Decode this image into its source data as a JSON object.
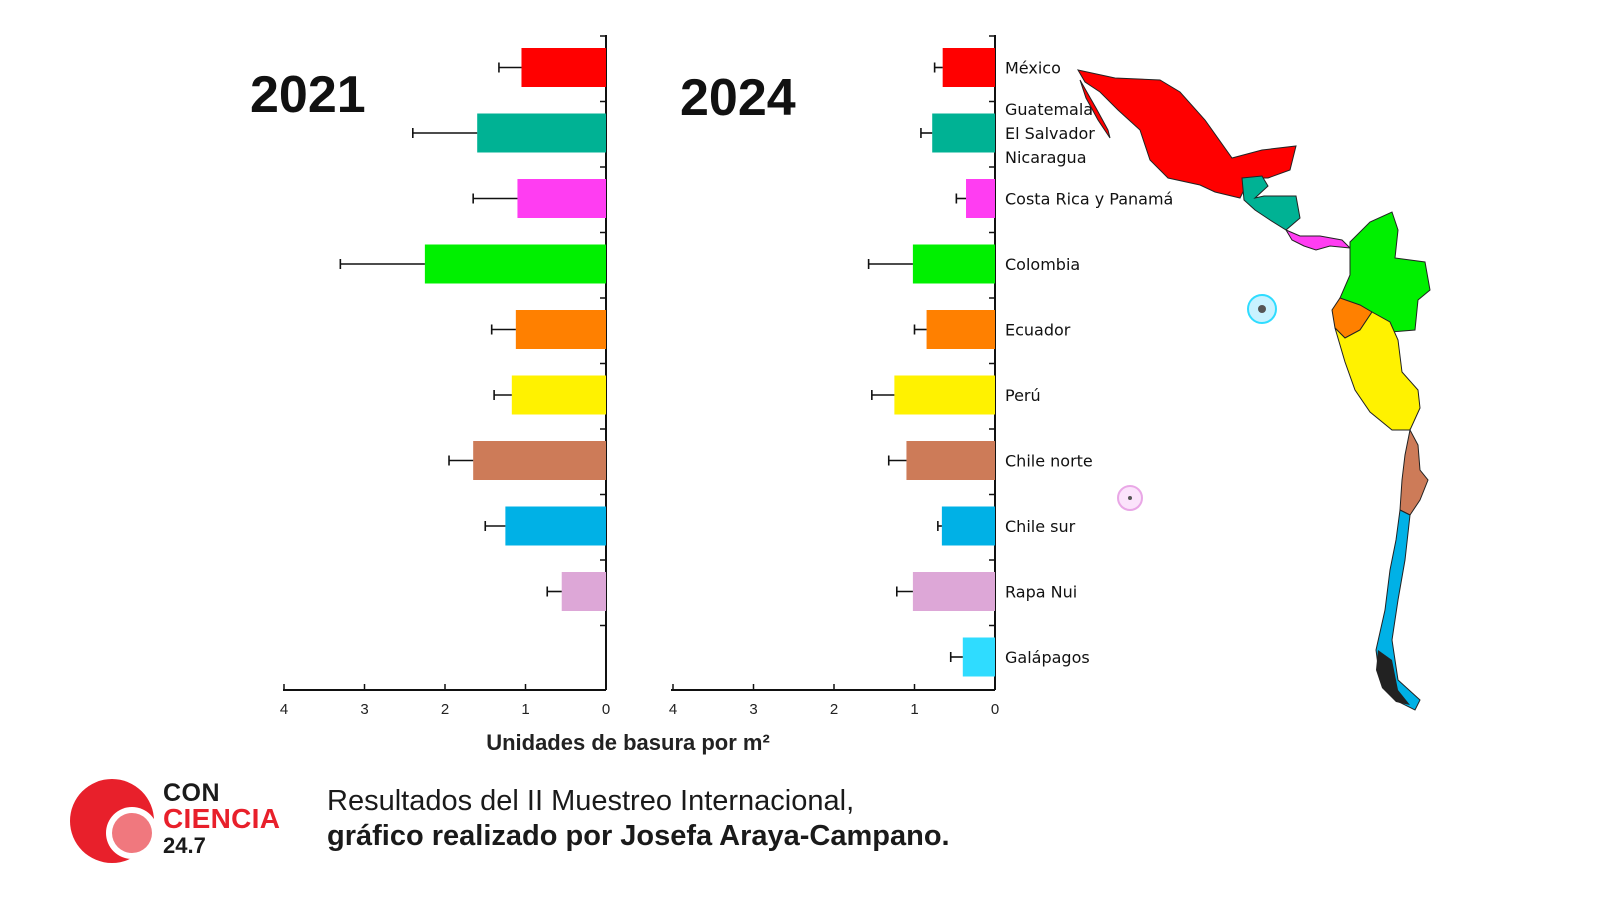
{
  "chart_data": [
    {
      "type": "bar",
      "orientation": "horizontal",
      "title": "2021",
      "xlabel": "Unidades de basura por m²",
      "xlim": [
        4,
        0
      ],
      "x_ticks": [
        "4",
        "3",
        "2",
        "1",
        "0"
      ],
      "categories": [
        "México",
        "Guatemala El Salvador Nicaragua",
        "Costa Rica y Panamá",
        "Colombia",
        "Ecuador",
        "Perú",
        "Chile norte",
        "Chile sur",
        "Rapa Nui",
        "Galápagos"
      ],
      "values": [
        1.05,
        1.6,
        1.1,
        2.25,
        1.12,
        1.17,
        1.65,
        1.25,
        0.55,
        null
      ],
      "error": [
        0.28,
        0.8,
        0.55,
        1.05,
        0.3,
        0.22,
        0.3,
        0.25,
        0.18,
        null
      ],
      "colors": [
        "#ff0000",
        "#00b294",
        "#ff3df2",
        "#00f000",
        "#ff8000",
        "#fff200",
        "#cd7b58",
        "#00b1e6",
        "#dda7d7",
        "#2fdcff"
      ]
    },
    {
      "type": "bar",
      "orientation": "horizontal",
      "title": "2024",
      "xlabel": "Unidades de basura por m²",
      "xlim": [
        4,
        0
      ],
      "x_ticks": [
        "4",
        "3",
        "2",
        "1",
        "0"
      ],
      "categories": [
        "México",
        "Guatemala El Salvador Nicaragua",
        "Costa Rica y Panamá",
        "Colombia",
        "Ecuador",
        "Perú",
        "Chile norte",
        "Chile sur",
        "Rapa Nui",
        "Galápagos"
      ],
      "values": [
        0.65,
        0.78,
        0.36,
        1.02,
        0.85,
        1.25,
        1.1,
        0.66,
        1.02,
        0.4
      ],
      "error": [
        0.1,
        0.14,
        0.12,
        0.55,
        0.15,
        0.28,
        0.22,
        0.05,
        0.2,
        0.15
      ],
      "colors": [
        "#ff0000",
        "#00b294",
        "#ff3df2",
        "#00f000",
        "#ff8000",
        "#fff200",
        "#cd7b58",
        "#00b1e6",
        "#dda7d7",
        "#2fdcff"
      ]
    }
  ],
  "labels": {
    "year_2021": "2021",
    "year_2024": "2024",
    "xlabel": "Unidades de basura por m²"
  },
  "countries": [
    {
      "lines": [
        "México"
      ]
    },
    {
      "lines": [
        "Guatemala",
        "El Salvador",
        "Nicaragua"
      ]
    },
    {
      "lines": [
        "Costa Rica y Panamá"
      ]
    },
    {
      "lines": [
        "Colombia"
      ]
    },
    {
      "lines": [
        "Ecuador"
      ]
    },
    {
      "lines": [
        "Perú"
      ]
    },
    {
      "lines": [
        "Chile norte"
      ]
    },
    {
      "lines": [
        "Chile sur"
      ]
    },
    {
      "lines": [
        "Rapa Nui"
      ]
    },
    {
      "lines": [
        "Galápagos"
      ]
    }
  ],
  "logo": {
    "con": "CON",
    "ciencia": "CIENCIA",
    "num": "24.7",
    "brand_color": "#e8202b"
  },
  "caption": {
    "line1": "Resultados del II Muestreo Internacional,",
    "line2": "gráfico realizado por Josefa Araya-Campano."
  },
  "map": {
    "icon": "map-icon"
  }
}
